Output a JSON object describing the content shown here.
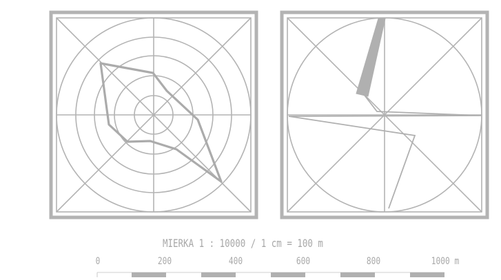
{
  "scale": {
    "title": "MIERKA 1 : 10000 / 1 cm = 100 m",
    "ticks": [
      "0",
      "200",
      "400",
      "600",
      "800",
      "1000 m"
    ]
  },
  "colors": {
    "line": "#b3b3b3",
    "background": "#ffffff"
  }
}
